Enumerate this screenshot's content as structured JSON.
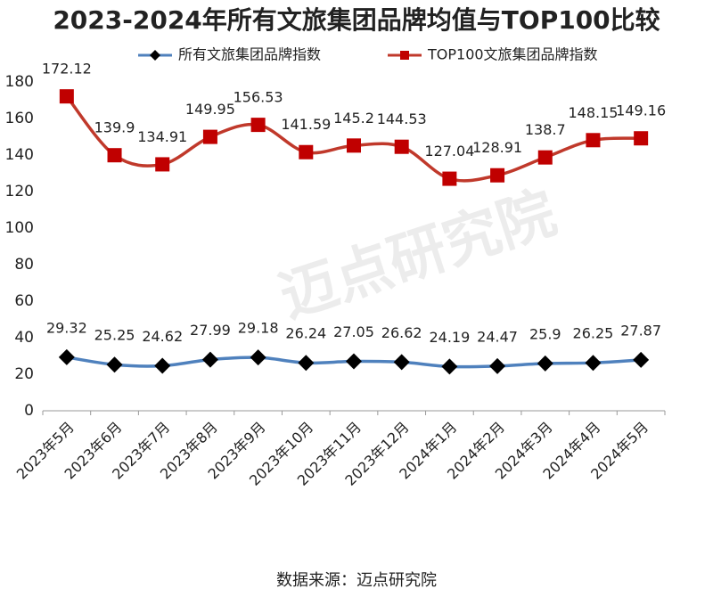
{
  "chart_data": {
    "type": "line",
    "title": "2023-2024年所有文旅集团品牌均值与TOP100比较",
    "categories": [
      "2023年5月",
      "2023年6月",
      "2023年7月",
      "2023年8月",
      "2023年9月",
      "2023年10月",
      "2023年11月",
      "2023年12月",
      "2024年1月",
      "2024年2月",
      "2024年3月",
      "2024年4月",
      "2024年5月"
    ],
    "series": [
      {
        "name": "所有文旅集团品牌指数",
        "color": "#4f81bd",
        "marker_color": "#000000",
        "marker": "diamond",
        "values": [
          29.32,
          25.25,
          24.62,
          27.99,
          29.18,
          26.24,
          27.05,
          26.62,
          24.19,
          24.47,
          25.9,
          26.25,
          27.87
        ]
      },
      {
        "name": "TOP100文旅集团品牌指数",
        "color": "#c0392b",
        "marker_color": "#c00000",
        "marker": "square",
        "values": [
          172.12,
          139.9,
          134.91,
          149.95,
          156.53,
          141.59,
          145.2,
          144.53,
          127.04,
          128.91,
          138.7,
          148.15,
          149.16
        ]
      }
    ],
    "ylim": [
      0,
      180
    ],
    "yticks": [
      0,
      20,
      40,
      60,
      80,
      100,
      120,
      140,
      160,
      180
    ],
    "grid": false,
    "smooth": true,
    "legend": "top",
    "watermark": "迈点研究院",
    "source": "数据来源：迈点研究院"
  }
}
